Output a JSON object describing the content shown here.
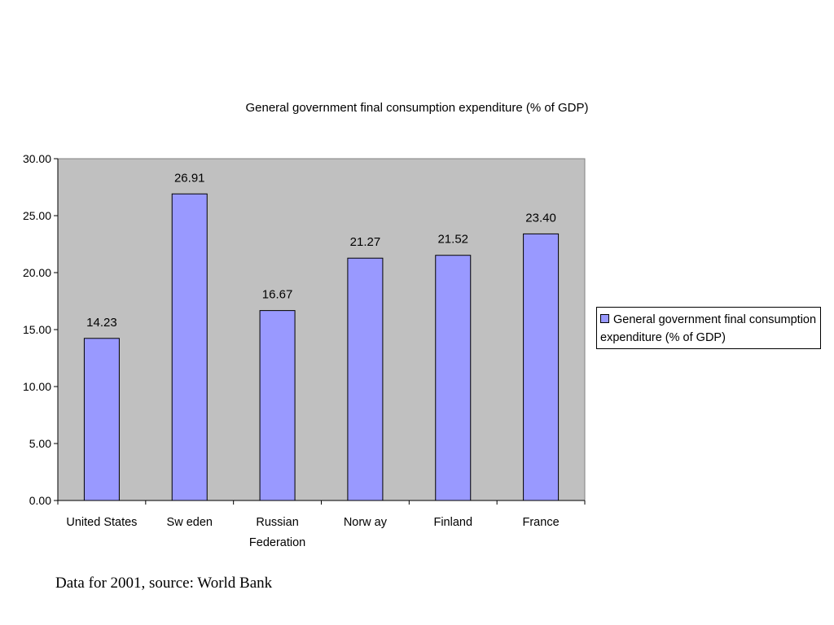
{
  "chart_data": {
    "type": "bar",
    "title": "General government final consumption expenditure (% of GDP)",
    "categories": [
      "United States",
      "Sw eden",
      "Russian Federation",
      "Norw ay",
      "Finland",
      "France"
    ],
    "series": [
      {
        "name": "General government final consumption expenditure (% of GDP)",
        "values": [
          14.23,
          26.91,
          16.67,
          21.27,
          21.52,
          23.4
        ],
        "labels": [
          "14.23",
          "26.91",
          "16.67",
          "21.27",
          "21.52",
          "23.40"
        ]
      }
    ],
    "yticks": [
      "0.00",
      "5.00",
      "10.00",
      "15.00",
      "20.00",
      "25.00",
      "30.00"
    ],
    "ylim": [
      0,
      30
    ],
    "xlabel": "",
    "ylabel": "",
    "grid": false,
    "legend_position": "right",
    "colors": {
      "bar": "#9999ff",
      "plot_bg": "#c0c0c0",
      "border": "#000000"
    }
  },
  "caption": "Data for 2001, source: World Bank"
}
